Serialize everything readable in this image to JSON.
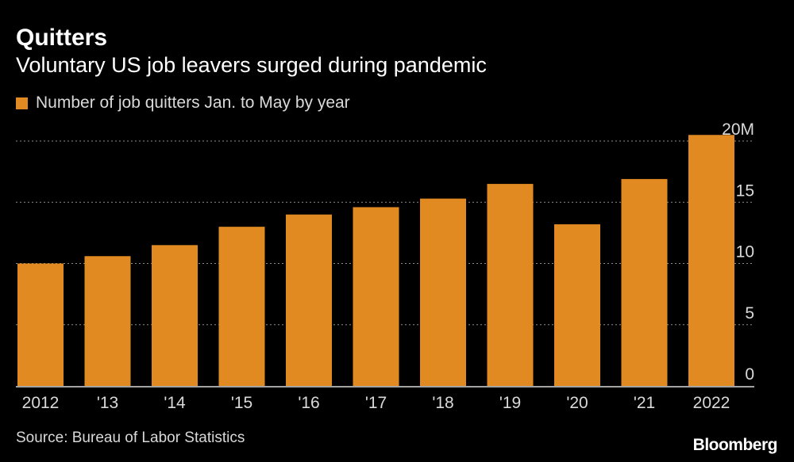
{
  "header": {
    "title": "Quitters",
    "subtitle": "Voluntary US job leavers surged during pandemic"
  },
  "legend": {
    "label": "Number of job quitters Jan. to May by year",
    "color": "#e08a21"
  },
  "footer": {
    "source": "Source: Bureau of Labor Statistics",
    "brand": "Bloomberg"
  },
  "colors": {
    "background": "#000000",
    "bar": "#e08a21",
    "gridline": "#8c8c8c",
    "axis": "#d9d9d9",
    "text": "#ffffff"
  },
  "chart_data": {
    "type": "bar",
    "categories": [
      "2012",
      "'13",
      "'14",
      "'15",
      "'16",
      "'17",
      "'18",
      "'19",
      "'20",
      "'21",
      "2022"
    ],
    "series": [
      {
        "name": "Number of job quitters Jan. to May by year",
        "values": [
          10.0,
          10.6,
          11.5,
          13.0,
          14.0,
          14.6,
          15.3,
          16.5,
          13.2,
          16.9,
          20.5
        ]
      }
    ],
    "y_ticks": [
      "0",
      "5",
      "10",
      "15",
      "20M"
    ],
    "y_tick_values": [
      0,
      5,
      10,
      15,
      20
    ],
    "ylim": [
      0,
      20
    ],
    "y_axis_position": "right",
    "grid": true,
    "grid_style": "dotted",
    "legend_position": "top-left"
  }
}
